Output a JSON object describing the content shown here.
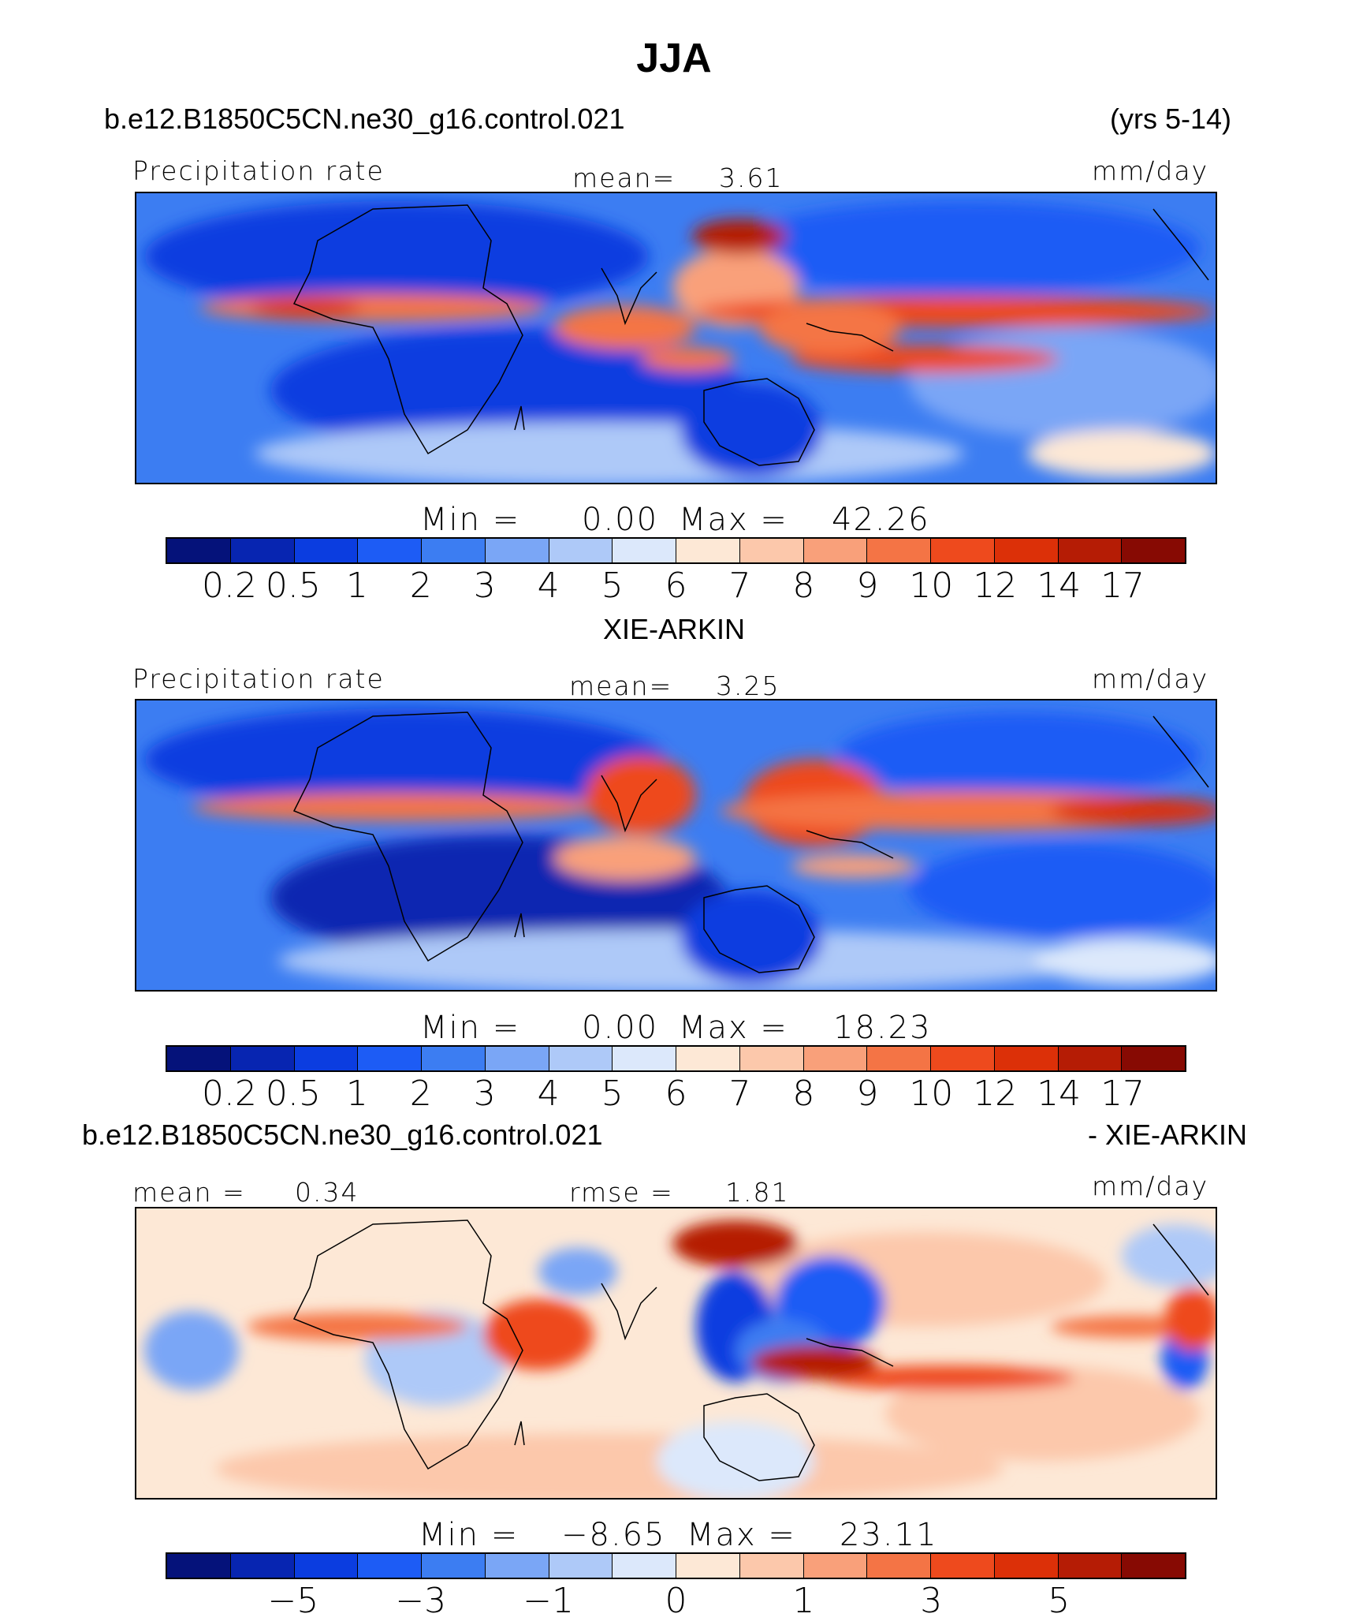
{
  "title": "JJA",
  "panels": [
    {
      "case_left": "b.e12.B1850C5CN.ne30_g16.control.021",
      "case_right": "(yrs 5-14)",
      "label_left": "Precipitation rate",
      "stat_center_label": "mean=",
      "stat_center_value": "3.61",
      "units": "mm/day",
      "min_label": "Min =",
      "min_value": "0.00",
      "max_label": "Max =",
      "max_value": "42.26"
    },
    {
      "case_center": "XIE-ARKIN",
      "label_left": "Precipitation rate",
      "stat_center_label": "mean=",
      "stat_center_value": "3.25",
      "units": "mm/day",
      "min_label": "Min =",
      "min_value": "0.00",
      "max_label": "Max =",
      "max_value": "18.23"
    },
    {
      "case_left": "b.e12.B1850C5CN.ne30_g16.control.021",
      "case_right": "- XIE-ARKIN",
      "stat_left_label": "mean =",
      "stat_left_value": "0.34",
      "stat_center_label": "rmse =",
      "stat_center_value": "1.81",
      "units": "mm/day",
      "min_label": "Min =",
      "min_value": "−8.65",
      "max_label": "Max =",
      "max_value": "23.11"
    }
  ],
  "colorbars": {
    "abs_colors": [
      "#05127a",
      "#0725b1",
      "#0b3de0",
      "#1d5cf5",
      "#3c7df2",
      "#7aa6f6",
      "#aec9f8",
      "#dce8fb",
      "#fde8d6",
      "#fcc8ab",
      "#f9a07a",
      "#f47445",
      "#ee4a1d",
      "#dc3008",
      "#b51c05",
      "#870a03"
    ],
    "abs_ticks": [
      "0.2",
      "0.5",
      "1",
      "2",
      "3",
      "4",
      "5",
      "6",
      "7",
      "8",
      "9",
      "10",
      "12",
      "14",
      "17"
    ],
    "diff_colors": [
      "#05127a",
      "#0725b1",
      "#0b3de0",
      "#1d5cf5",
      "#3c7df2",
      "#7aa6f6",
      "#aec9f8",
      "#dce8fb",
      "#fde8d6",
      "#fcc8ab",
      "#f9a07a",
      "#f47445",
      "#ee4a1d",
      "#dc3008",
      "#b51c05",
      "#870a03"
    ],
    "diff_ticks": [
      {
        "label": "−5",
        "boundary": 2
      },
      {
        "label": "−3",
        "boundary": 4
      },
      {
        "label": "−1",
        "boundary": 6
      },
      {
        "label": "0",
        "boundary": 8
      },
      {
        "label": "1",
        "boundary": 10
      },
      {
        "label": "3",
        "boundary": 12
      },
      {
        "label": "5",
        "boundary": 14
      }
    ]
  },
  "chart_data": [
    {
      "type": "heatmap",
      "title": "Precipitation rate",
      "units": "mm/day",
      "mean": 3.61,
      "min": 0.0,
      "max": 42.26,
      "levels": [
        0.2,
        0.5,
        1,
        2,
        3,
        4,
        5,
        6,
        7,
        8,
        9,
        10,
        12,
        14,
        17
      ]
    },
    {
      "type": "heatmap",
      "title": "Precipitation rate",
      "units": "mm/day",
      "mean": 3.25,
      "min": 0.0,
      "max": 18.23,
      "levels": [
        0.2,
        0.5,
        1,
        2,
        3,
        4,
        5,
        6,
        7,
        8,
        9,
        10,
        12,
        14,
        17
      ]
    },
    {
      "type": "heatmap",
      "units": "mm/day",
      "mean": 0.34,
      "rmse": 1.81,
      "min": -8.65,
      "max": 23.11,
      "ticks": [
        -5,
        -3,
        -1,
        0,
        1,
        3,
        5
      ]
    }
  ]
}
